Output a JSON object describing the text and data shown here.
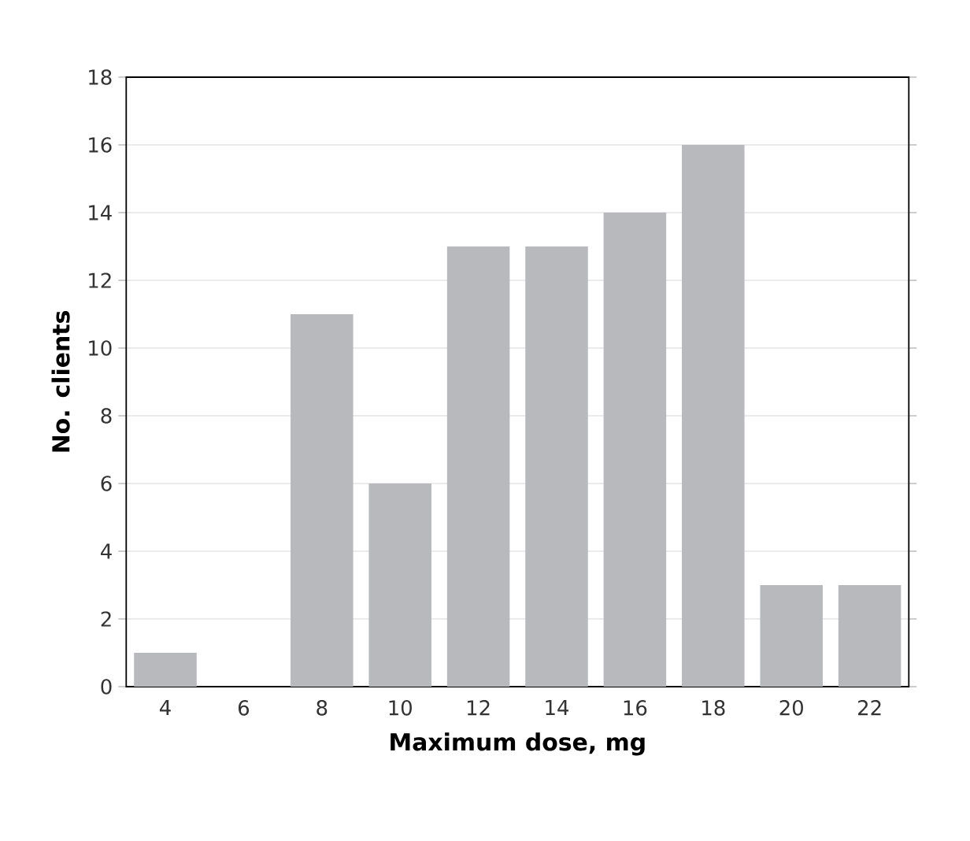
{
  "chart_data": {
    "type": "bar",
    "xlabel": "Maximum dose, mg",
    "ylabel": "No. clients",
    "categories": [
      "4",
      "6",
      "8",
      "10",
      "12",
      "14",
      "16",
      "18",
      "20",
      "22"
    ],
    "values": [
      1,
      0,
      11,
      6,
      13,
      13,
      14,
      16,
      3,
      3
    ],
    "color": "#b8b9bd",
    "ylim": [
      0,
      18
    ],
    "yticks": [
      0,
      2,
      4,
      6,
      8,
      10,
      12,
      14,
      16,
      18
    ],
    "grid": "y"
  }
}
